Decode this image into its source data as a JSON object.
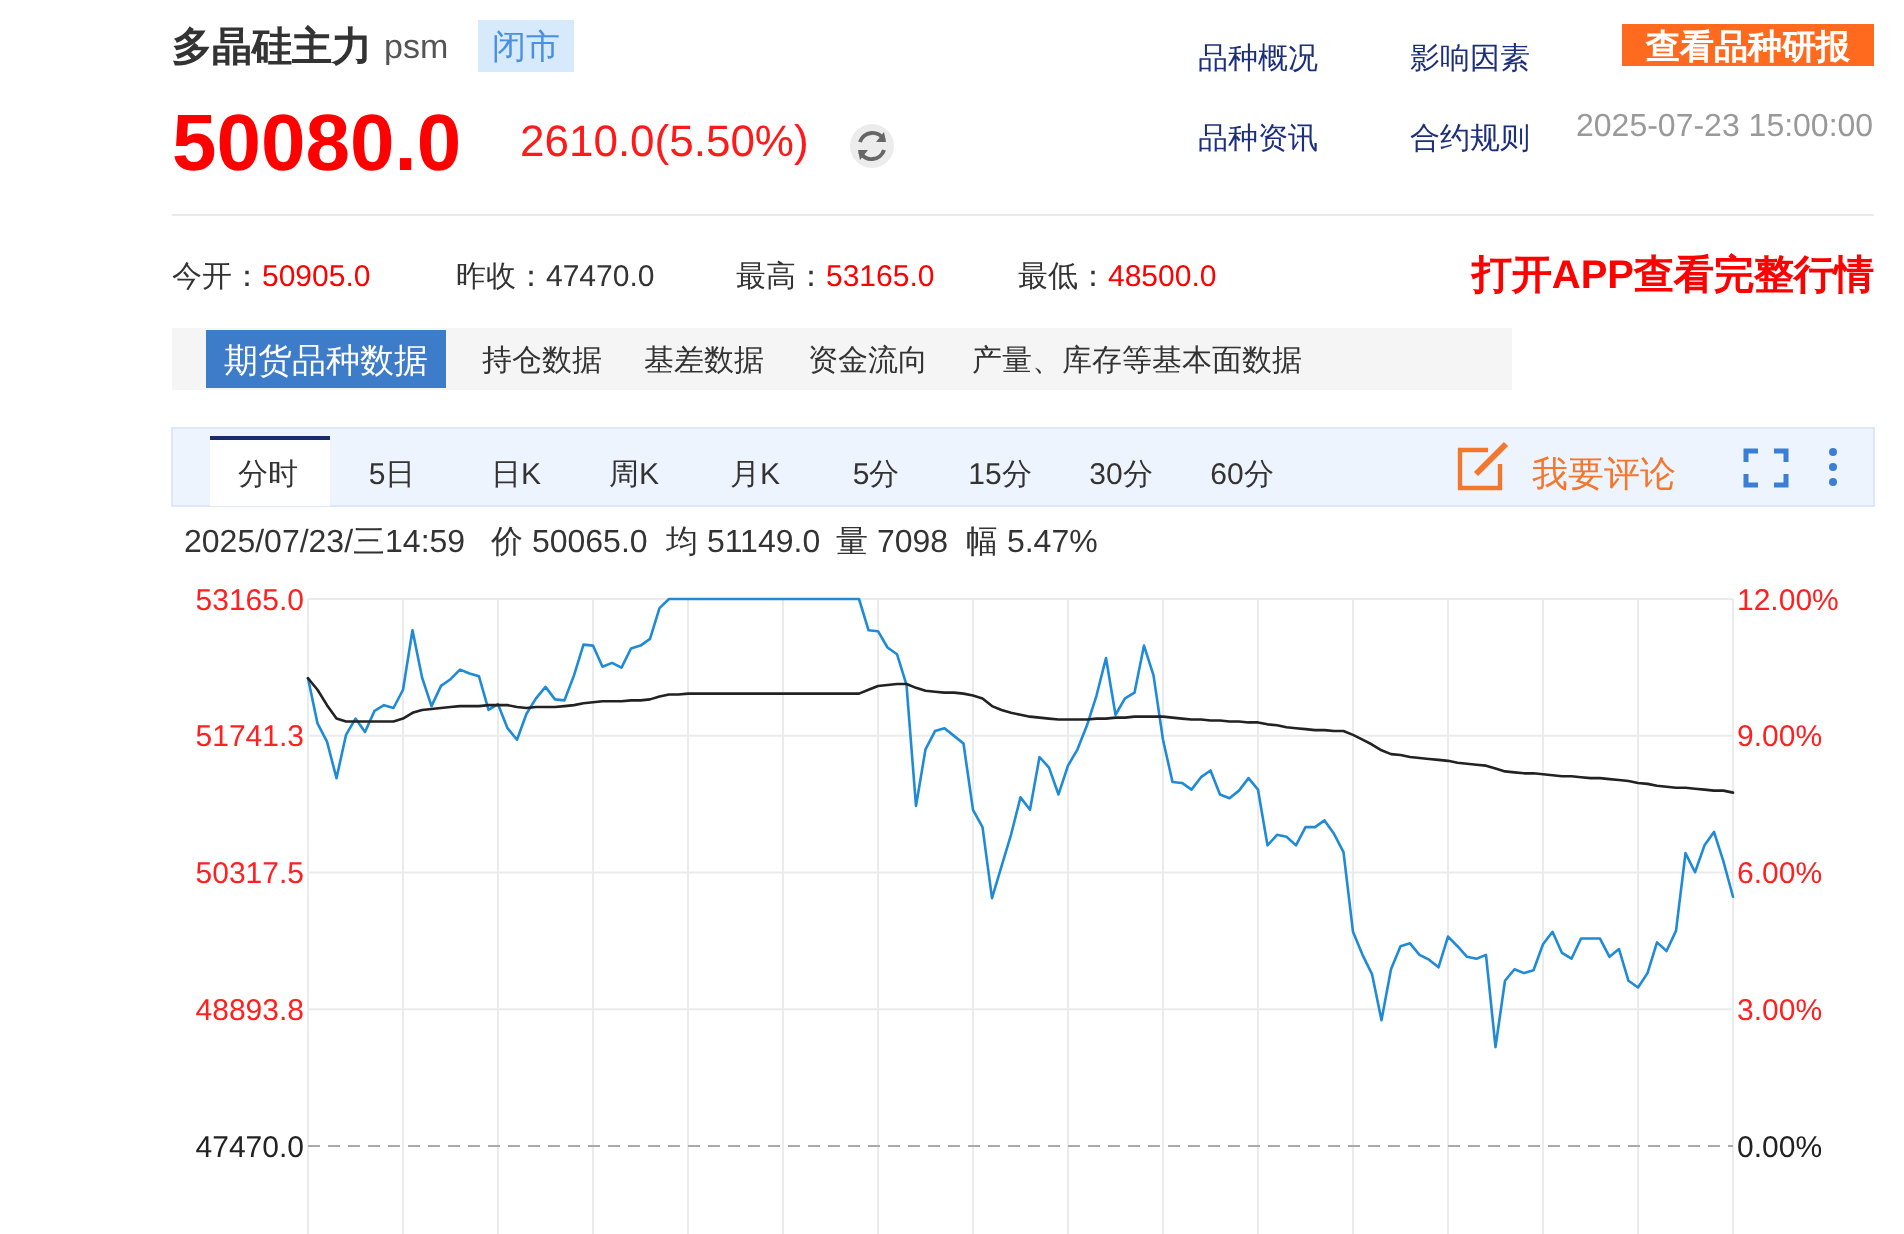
{
  "chart_data": {
    "type": "line",
    "title": "多晶硅主力",
    "subtitle": "psm",
    "annotations": [
      "闭市",
      "50080.0",
      "2610.0(5.50%)",
      "品种概况",
      "影响因素",
      "查看品种研报",
      "品种资讯",
      "合约规则",
      "2025-07-23 15:00:00",
      "今开：",
      "50905.0",
      "昨收：",
      "47470.0",
      "最高：",
      "53165.0",
      "最低：",
      "48500.0",
      "打开APP查看完整行情",
      "期货品种数据",
      "持仓数据",
      "基差数据",
      "资金流向",
      "产量、库存等基本面数据",
      "分时",
      "5日",
      "日K",
      "周K",
      "月K",
      "5分",
      "15分",
      "30分",
      "60分",
      "我要评论",
      "2025/07/23/三14:59",
      "价 50065.0",
      "均 51149.0",
      "量 7098",
      "幅 5.47%"
    ],
    "categories": [
      null,
      null,
      null,
      null,
      null,
      null,
      null,
      null,
      null,
      null,
      null,
      null,
      null,
      null,
      null,
      null,
      null,
      null,
      null,
      null,
      null,
      null,
      null,
      null,
      null,
      null,
      null,
      null,
      null,
      null,
      null,
      null,
      null,
      null,
      null,
      null,
      null,
      null,
      null,
      null,
      null,
      null,
      null,
      null,
      null,
      null,
      null,
      null,
      null,
      null,
      null,
      null,
      null,
      null,
      null,
      null,
      null,
      null,
      null,
      null,
      null,
      null,
      null,
      null,
      null,
      null,
      null,
      null,
      null,
      null,
      null,
      null,
      null,
      null,
      null,
      null,
      null,
      null,
      null,
      null,
      null,
      null,
      null,
      null,
      null,
      null,
      null,
      null,
      null,
      null,
      null,
      null,
      null,
      null,
      null,
      null,
      null,
      null,
      null,
      null,
      null,
      null,
      null,
      null,
      null,
      null,
      null,
      null,
      null,
      null,
      null,
      null,
      null,
      null,
      null,
      null,
      null,
      null,
      null,
      null,
      null,
      null,
      null,
      null,
      null,
      null,
      null,
      null,
      null,
      null,
      null,
      null,
      null,
      null,
      null,
      null,
      null,
      null,
      null,
      null,
      null,
      null,
      null,
      null,
      null,
      null,
      null,
      null,
      null,
      null,
      null
    ],
    "series": [
      {
        "color": "#1f8ad6",
        "values": [
          52340,
          51870,
          51680,
          51300,
          51750,
          51920,
          51780,
          52000,
          52060,
          52030,
          52220,
          52840,
          52350,
          52050,
          52260,
          52330,
          52430,
          52390,
          52360,
          52010,
          52070,
          51820,
          51700,
          51970,
          52130,
          52250,
          52120,
          52110,
          52370,
          52690,
          52680,
          52460,
          52500,
          52450,
          52650,
          52680,
          52750,
          53070,
          53165,
          53165,
          53165,
          53165,
          53165,
          53165,
          53165,
          53165,
          53165,
          53165,
          53165,
          53165,
          53165,
          53165,
          53165,
          53165,
          53165,
          53165,
          53165,
          53165,
          53165,
          52840,
          52830,
          52660,
          52590,
          52270,
          51010,
          51600,
          51790,
          51820,
          51740,
          51660,
          50970,
          50790,
          50050,
          50380,
          50710,
          51100,
          50970,
          51520,
          51410,
          51130,
          51430,
          51600,
          51850,
          52160,
          52550,
          51960,
          52130,
          52190,
          52680,
          52370,
          51700,
          51260,
          51250,
          51180,
          51310,
          51380,
          51130,
          51090,
          51170,
          51300,
          51180,
          50600,
          50710,
          50690,
          50600,
          50790,
          50790,
          50860,
          50720,
          50530,
          49700,
          49460,
          49260,
          48780,
          49310,
          49550,
          49580,
          49460,
          49410,
          49330,
          49650,
          49550,
          49440,
          49420,
          49460,
          48500,
          49190,
          49310,
          49270,
          49300,
          49570,
          49700,
          49480,
          49420,
          49630,
          49630,
          49630,
          49440,
          49520,
          49190,
          49120,
          49270,
          49590,
          49500,
          49710,
          50520,
          50320,
          50600,
          50740,
          50430,
          50065
        ]
      },
      {
        "color": "#222222",
        "values": [
          52340,
          52220,
          52060,
          51920,
          51890,
          51890,
          51890,
          51890,
          51890,
          51890,
          51920,
          51980,
          52010,
          52020,
          52030,
          52040,
          52050,
          52050,
          52050,
          52060,
          52060,
          52060,
          52040,
          52030,
          52040,
          52040,
          52040,
          52050,
          52060,
          52080,
          52090,
          52100,
          52100,
          52100,
          52110,
          52110,
          52120,
          52150,
          52170,
          52170,
          52180,
          52180,
          52180,
          52180,
          52180,
          52180,
          52180,
          52180,
          52180,
          52180,
          52180,
          52180,
          52180,
          52180,
          52180,
          52180,
          52180,
          52180,
          52180,
          52220,
          52260,
          52270,
          52280,
          52280,
          52240,
          52210,
          52200,
          52190,
          52190,
          52180,
          52160,
          52130,
          52050,
          52010,
          51980,
          51960,
          51940,
          51930,
          51920,
          51910,
          51910,
          51910,
          51910,
          51920,
          51920,
          51930,
          51930,
          51940,
          51940,
          51940,
          51940,
          51930,
          51920,
          51910,
          51910,
          51900,
          51900,
          51890,
          51890,
          51880,
          51880,
          51860,
          51850,
          51830,
          51820,
          51810,
          51800,
          51800,
          51790,
          51790,
          51750,
          51700,
          51650,
          51590,
          51550,
          51540,
          51520,
          51510,
          51500,
          51490,
          51480,
          51460,
          51450,
          51440,
          51430,
          51400,
          51370,
          51360,
          51350,
          51350,
          51340,
          51330,
          51320,
          51320,
          51310,
          51300,
          51300,
          51290,
          51280,
          51270,
          51250,
          51240,
          51220,
          51210,
          51200,
          51200,
          51190,
          51180,
          51170,
          51170,
          51149
        ]
      }
    ],
    "ylim": [
      47470,
      53165
    ],
    "yticks": [
      {
        "value": 47470,
        "label": "47470.0"
      },
      {
        "value": 48893.75,
        "label": "48893.8"
      },
      {
        "value": 50317.5,
        "label": "50317.5"
      },
      {
        "value": 51741.25,
        "label": "51741.3"
      },
      {
        "value": 53165,
        "label": "53165.0"
      }
    ],
    "y2lim": [
      0,
      12
    ],
    "y2ticks": [
      {
        "value": 0,
        "label": "0.00%"
      },
      {
        "value": 3,
        "label": "3.00%"
      },
      {
        "value": 6,
        "label": "6.00%"
      },
      {
        "value": 9,
        "label": "9.00%"
      },
      {
        "value": 12,
        "label": "12.00%"
      }
    ],
    "ref_lines": [
      {
        "axis": "y",
        "value": 47470,
        "color": "#aaaaaa",
        "line_style": "dashed"
      }
    ],
    "grid": true
  }
}
